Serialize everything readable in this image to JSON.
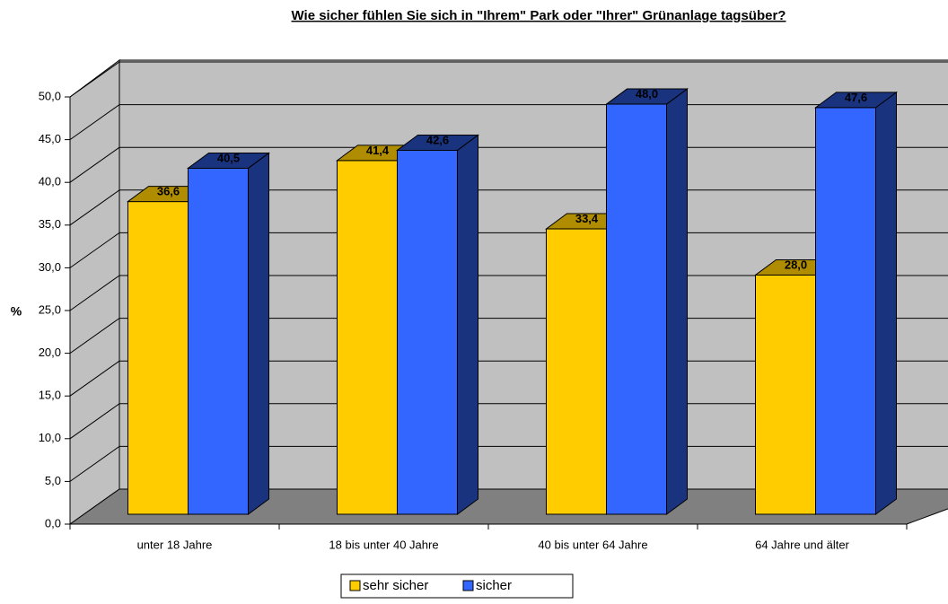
{
  "chart_data": {
    "type": "bar3d",
    "title": "Wie sicher fühlen Sie sich in \"Ihrem\" Park oder \"Ihrer\" Grünanlage tagsüber?",
    "y_label": "%",
    "categories": [
      "unter 18 Jahre",
      "18 bis unter 40 Jahre",
      "40 bis unter 64 Jahre",
      "64 Jahre und älter"
    ],
    "series": [
      {
        "name": "sehr sicher",
        "color": "#ffcc00",
        "side": "#b08c00",
        "values": [
          36.6,
          41.4,
          33.4,
          28.0
        ],
        "value_labels": [
          "36,6",
          "41,4",
          "33,4",
          "28,0"
        ]
      },
      {
        "name": "sicher",
        "color": "#3366ff",
        "side": "#1a337f",
        "values": [
          40.5,
          42.6,
          48.0,
          47.6
        ],
        "value_labels": [
          "40,5",
          "42,6",
          "48,0",
          "47,6"
        ]
      }
    ],
    "ylim": [
      0,
      50
    ],
    "yticks": [
      {
        "value": 0,
        "label": "0,0"
      },
      {
        "value": 5,
        "label": "5,0"
      },
      {
        "value": 10,
        "label": "10,0"
      },
      {
        "value": 15,
        "label": "15,0"
      },
      {
        "value": 20,
        "label": "20,0"
      },
      {
        "value": 25,
        "label": "25,0"
      },
      {
        "value": 30,
        "label": "30,0"
      },
      {
        "value": 35,
        "label": "35,0"
      },
      {
        "value": 40,
        "label": "40,0"
      },
      {
        "value": 45,
        "label": "45,0"
      },
      {
        "value": 50,
        "label": "50,0"
      }
    ],
    "grid": true,
    "legend": "bottom"
  }
}
